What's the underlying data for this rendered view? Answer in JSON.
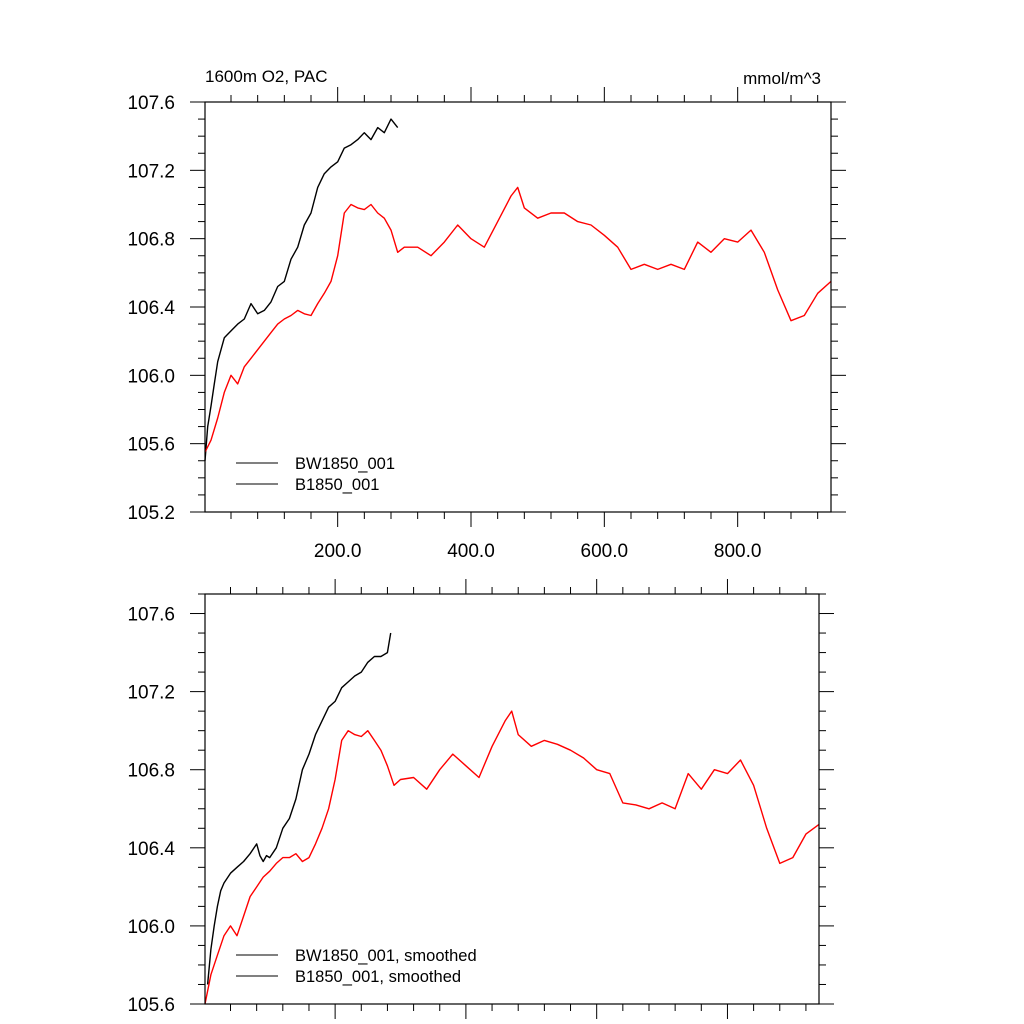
{
  "chart_data": [
    {
      "type": "line",
      "title": "1600m O2, PAC",
      "units": "mmol/m^3",
      "xlim": [
        1,
        940
      ],
      "ylim": [
        105.2,
        107.6
      ],
      "ytick_labels": [
        "105.2",
        "105.6",
        "106.0",
        "106.4",
        "106.8",
        "107.2",
        "107.6"
      ],
      "xtick_labels": [
        "200.0",
        "400.0",
        "600.0",
        "800.0"
      ],
      "grid": false,
      "legend_position": "bottom-left",
      "series": [
        {
          "name": "BW1850_001",
          "color": "#000000",
          "x": [
            1,
            5,
            10,
            15,
            20,
            25,
            30,
            40,
            50,
            60,
            70,
            80,
            90,
            100,
            110,
            120,
            130,
            140,
            150,
            160,
            170,
            180,
            190,
            200,
            210,
            220,
            230,
            240,
            250,
            260,
            270,
            280,
            290
          ],
          "y": [
            105.5,
            105.7,
            105.82,
            105.95,
            106.08,
            106.15,
            106.22,
            106.26,
            106.3,
            106.33,
            106.42,
            106.36,
            106.38,
            106.43,
            106.52,
            106.55,
            106.68,
            106.75,
            106.88,
            106.95,
            107.1,
            107.18,
            107.22,
            107.25,
            107.33,
            107.35,
            107.38,
            107.42,
            107.38,
            107.45,
            107.42,
            107.5,
            107.45
          ]
        },
        {
          "name": "B1850_001",
          "color": "#ff0000",
          "x": [
            1,
            10,
            20,
            30,
            40,
            50,
            60,
            70,
            80,
            90,
            100,
            110,
            120,
            130,
            140,
            150,
            160,
            170,
            180,
            190,
            200,
            210,
            220,
            230,
            240,
            250,
            260,
            270,
            280,
            290,
            300,
            320,
            340,
            360,
            380,
            400,
            420,
            440,
            460,
            470,
            480,
            500,
            520,
            540,
            560,
            580,
            600,
            620,
            640,
            660,
            680,
            700,
            720,
            740,
            760,
            780,
            800,
            820,
            840,
            860,
            880,
            900,
            920,
            940
          ],
          "y": [
            105.55,
            105.62,
            105.75,
            105.9,
            106.0,
            105.95,
            106.05,
            106.1,
            106.15,
            106.2,
            106.25,
            106.3,
            106.33,
            106.35,
            106.38,
            106.36,
            106.35,
            106.42,
            106.48,
            106.55,
            106.7,
            106.95,
            107.0,
            106.98,
            106.97,
            107.0,
            106.95,
            106.92,
            106.85,
            106.72,
            106.75,
            106.75,
            106.7,
            106.78,
            106.88,
            106.8,
            106.75,
            106.9,
            107.05,
            107.1,
            106.98,
            106.92,
            106.95,
            106.95,
            106.9,
            106.88,
            106.82,
            106.75,
            106.62,
            106.65,
            106.62,
            106.65,
            106.62,
            106.78,
            106.72,
            106.8,
            106.78,
            106.85,
            106.72,
            106.5,
            106.32,
            106.35,
            106.48,
            106.55
          ]
        }
      ]
    },
    {
      "type": "line",
      "xlim": [
        1,
        940
      ],
      "ylim": [
        105.6,
        107.7
      ],
      "ytick_labels": [
        "105.6",
        "106.0",
        "106.4",
        "106.8",
        "107.2",
        "107.6"
      ],
      "grid": false,
      "legend_position": "bottom-left",
      "series": [
        {
          "name": "BW1850_001, smoothed",
          "color": "#000000",
          "x": [
            5,
            10,
            15,
            20,
            25,
            30,
            40,
            50,
            60,
            70,
            80,
            85,
            90,
            95,
            100,
            110,
            120,
            130,
            140,
            150,
            160,
            170,
            180,
            190,
            200,
            210,
            220,
            230,
            240,
            250,
            260,
            270,
            280,
            285
          ],
          "y": [
            105.7,
            105.88,
            106.0,
            106.1,
            106.18,
            106.22,
            106.27,
            106.3,
            106.33,
            106.37,
            106.42,
            106.36,
            106.33,
            106.36,
            106.35,
            106.4,
            106.5,
            106.55,
            106.65,
            106.8,
            106.88,
            106.98,
            107.05,
            107.12,
            107.15,
            107.22,
            107.25,
            107.28,
            107.3,
            107.35,
            107.38,
            107.38,
            107.4,
            107.5
          ]
        },
        {
          "name": "B1850_001, smoothed",
          "color": "#ff0000",
          "x": [
            1,
            10,
            20,
            30,
            40,
            50,
            60,
            70,
            80,
            90,
            100,
            110,
            120,
            130,
            140,
            150,
            160,
            170,
            180,
            190,
            200,
            210,
            220,
            230,
            240,
            250,
            260,
            270,
            280,
            290,
            300,
            320,
            340,
            360,
            380,
            400,
            420,
            440,
            460,
            470,
            480,
            500,
            520,
            540,
            560,
            580,
            600,
            620,
            640,
            660,
            680,
            700,
            720,
            740,
            760,
            780,
            800,
            820,
            840,
            860,
            880,
            900,
            920,
            940
          ],
          "y": [
            105.6,
            105.75,
            105.85,
            105.95,
            106.0,
            105.95,
            106.05,
            106.15,
            106.2,
            106.25,
            106.28,
            106.32,
            106.35,
            106.35,
            106.37,
            106.33,
            106.35,
            106.42,
            106.5,
            106.6,
            106.75,
            106.95,
            107.0,
            106.98,
            106.97,
            107.0,
            106.95,
            106.9,
            106.82,
            106.72,
            106.75,
            106.76,
            106.7,
            106.8,
            106.88,
            106.82,
            106.76,
            106.92,
            107.05,
            107.1,
            106.98,
            106.92,
            106.95,
            106.93,
            106.9,
            106.86,
            106.8,
            106.78,
            106.63,
            106.62,
            106.6,
            106.63,
            106.6,
            106.78,
            106.7,
            106.8,
            106.78,
            106.85,
            106.72,
            106.5,
            106.32,
            106.35,
            106.47,
            106.52
          ]
        }
      ]
    }
  ]
}
